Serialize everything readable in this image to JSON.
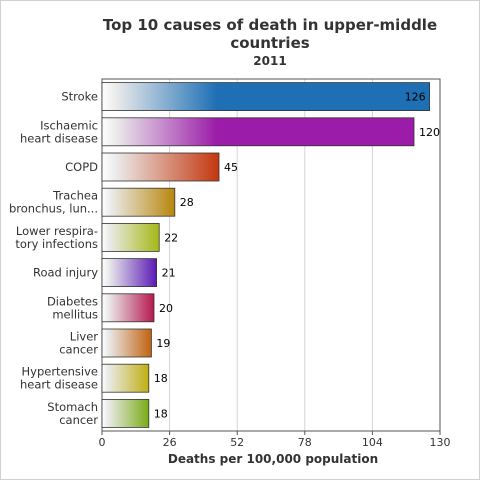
{
  "chart_data": {
    "type": "bar",
    "orientation": "horizontal",
    "title": "Top 10 causes of death in upper-middle countries",
    "subtitle": "2011",
    "xlabel": "Deaths per 100,000 population",
    "ylabel": "",
    "xlim": [
      0,
      130
    ],
    "xticks": [
      0,
      26,
      52,
      78,
      104,
      130
    ],
    "grid": true,
    "categories": [
      [
        "Stroke"
      ],
      [
        "Ischaemic",
        "heart disease"
      ],
      [
        "COPD"
      ],
      [
        "Trachea",
        "bronchus, lun..."
      ],
      [
        "Lower respira-",
        "tory infections"
      ],
      [
        "Road injury"
      ],
      [
        "Diabetes",
        "mellitus"
      ],
      [
        "Liver",
        "cancer"
      ],
      [
        "Hypertensive",
        "heart disease"
      ],
      [
        "Stomach",
        "cancer"
      ]
    ],
    "values": [
      126,
      120,
      45,
      28,
      22,
      21,
      20,
      19,
      18,
      18
    ],
    "colors": [
      "#1f6fb5",
      "#9b1ca8",
      "#c43a12",
      "#b8860b",
      "#a5b814",
      "#5a1ab5",
      "#b5184f",
      "#c0620f",
      "#bfae12",
      "#7aab16"
    ]
  }
}
